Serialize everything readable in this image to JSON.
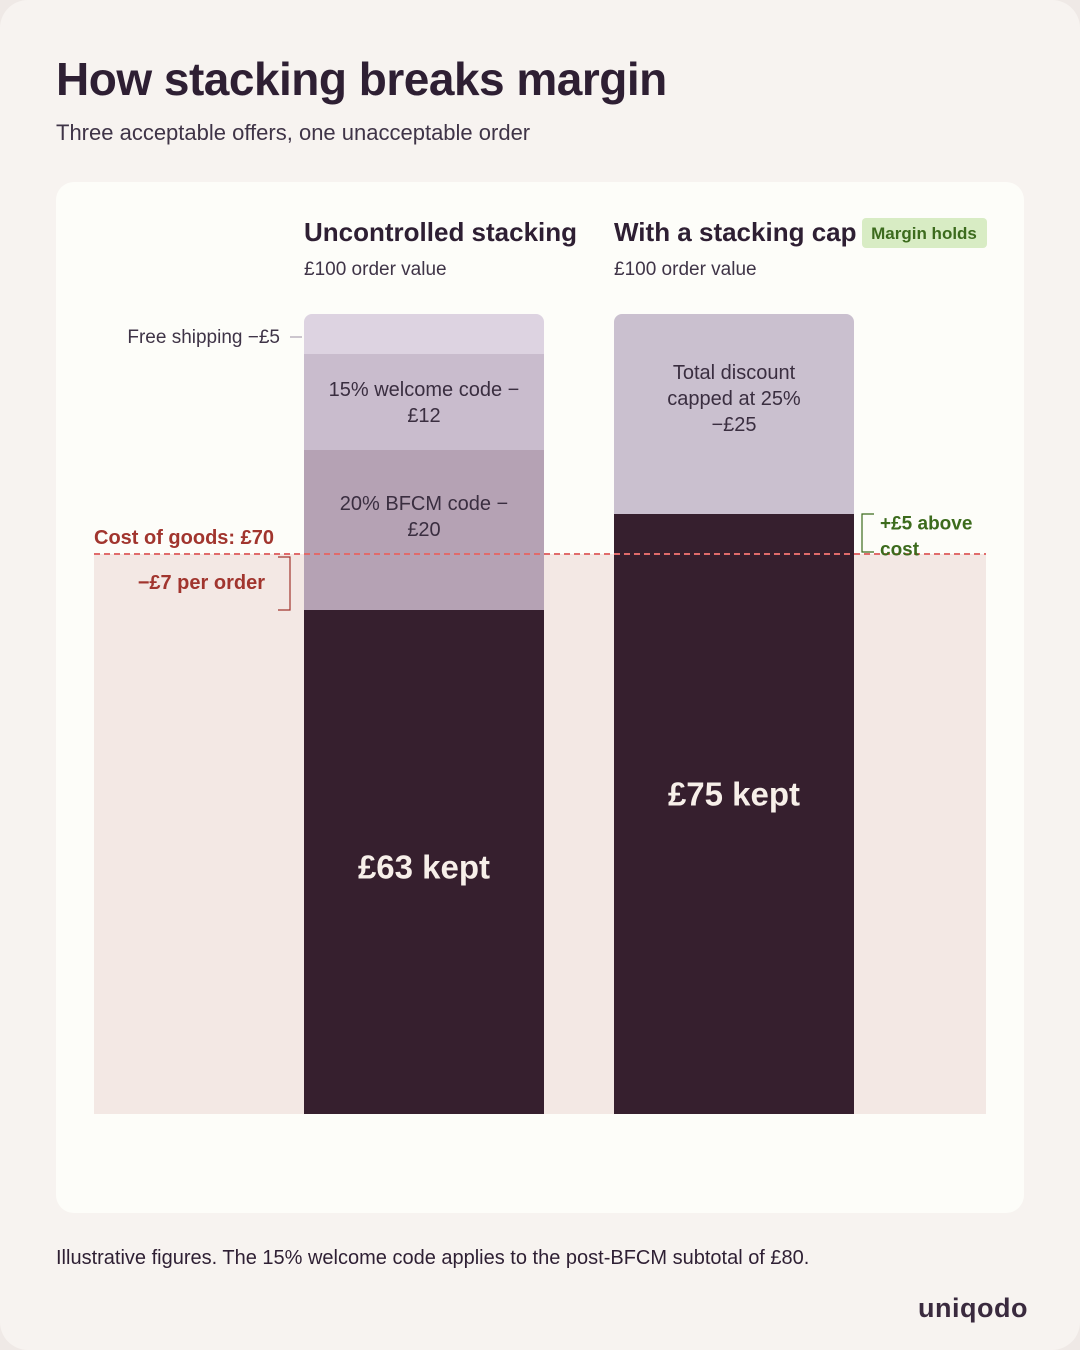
{
  "title": "How stacking breaks margin",
  "subtitle": "Three acceptable offers, one unacceptable order",
  "footnote": "Illustrative figures. The 15% welcome code applies to the post-BFCM subtotal of £80.",
  "brand": "uniqodo",
  "chart_data": {
    "type": "bar",
    "stacked": true,
    "order_value": 100,
    "y_range": [
      0,
      100
    ],
    "threshold": {
      "value": 70,
      "label": "Cost of goods: £70",
      "color": "#e06b6b"
    },
    "columns": [
      {
        "title": "Uncontrolled stacking",
        "subtitle": "£100 order value",
        "segments": [
          {
            "name": "kept",
            "value": 63,
            "label": "£63 kept",
            "color": "#361f2e"
          },
          {
            "name": "bfcm",
            "value": 20,
            "label": "20% BFCM code −£20",
            "label_lines": [
              "20% BFCM code −",
              "£20"
            ],
            "color": "#b5a2b4"
          },
          {
            "name": "welcome",
            "value": 12,
            "label": "15% welcome code −£12",
            "label_lines": [
              "15% welcome code −",
              "£12"
            ],
            "color": "#c9bccd"
          },
          {
            "name": "shipping",
            "value": 5,
            "label": "Free shipping −£5",
            "color": "#ddd3e1"
          }
        ],
        "annotation": {
          "label": "−£7 per order",
          "value": -7,
          "color": "#a1352e"
        }
      },
      {
        "title": "With a stacking cap",
        "subtitle": "£100 order value",
        "badge": "Margin holds",
        "badge_colors": {
          "bg": "#d8ecc4",
          "fg": "#3c6b1d"
        },
        "segments": [
          {
            "name": "kept",
            "value": 75,
            "label": "£75 kept",
            "color": "#361f2e"
          },
          {
            "name": "capped",
            "value": 25,
            "label": "Total discount capped at 25% −£25",
            "label_lines": [
              "Total discount",
              "capped at 25%",
              "−£25"
            ],
            "color": "#cac0cf"
          }
        ],
        "annotation": {
          "label": "+£5 above cost",
          "label_lines": [
            "+£5 above",
            "cost"
          ],
          "value": 5,
          "color": "#3c6b1d"
        }
      }
    ]
  }
}
